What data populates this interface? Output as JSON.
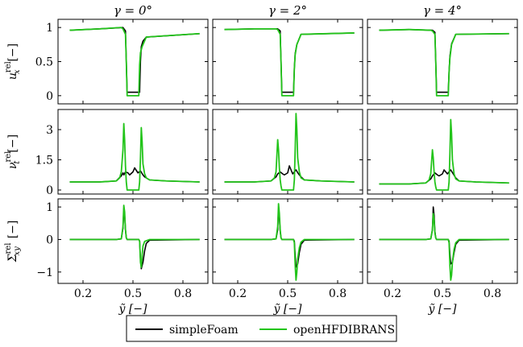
{
  "colors": {
    "simpleFoam": "#000000",
    "openHFDIBRANS": "#22c41a"
  },
  "chart_data": {
    "type": "line",
    "column_titles": [
      "γ = 0°",
      "γ = 2°",
      "γ = 4°"
    ],
    "xlabel": "ỹ [−]",
    "x_ticks": [
      0.2,
      0.5,
      0.8
    ],
    "xlim": [
      0.05,
      0.95
    ],
    "legend": {
      "placement": "bottom-center",
      "entries": [
        "simpleFoam",
        "openHFDIBRANS"
      ]
    },
    "rows": [
      {
        "ylabel": "u_x^rel [−]",
        "ylim": [
          -0.12,
          1.12
        ],
        "y_ticks": [
          0,
          0.5,
          1
        ],
        "panels": [
          {
            "title": "γ = 0°",
            "series": [
              {
                "name": "simpleFoam",
                "x": [
                  0.12,
                  0.3,
                  0.44,
                  0.455,
                  0.46,
                  0.465,
                  0.54,
                  0.545,
                  0.55,
                  0.56,
                  0.58,
                  0.9
                ],
                "y": [
                  0.96,
                  0.98,
                  1.0,
                  0.95,
                  0.5,
                  0.05,
                  0.05,
                  0.5,
                  0.72,
                  0.8,
                  0.86,
                  0.91
                ]
              },
              {
                "name": "openHFDIBRANS",
                "x": [
                  0.12,
                  0.3,
                  0.43,
                  0.44,
                  0.455,
                  0.46,
                  0.465,
                  0.535,
                  0.54,
                  0.545,
                  0.555,
                  0.58,
                  0.9
                ],
                "y": [
                  0.96,
                  0.98,
                  1.0,
                  0.98,
                  0.9,
                  0.5,
                  0.0,
                  0.0,
                  0.45,
                  0.63,
                  0.72,
                  0.86,
                  0.91
                ]
              }
            ]
          },
          {
            "title": "γ = 2°",
            "series": [
              {
                "name": "simpleFoam",
                "x": [
                  0.12,
                  0.3,
                  0.44,
                  0.455,
                  0.46,
                  0.465,
                  0.535,
                  0.54,
                  0.545,
                  0.555,
                  0.58,
                  0.9
                ],
                "y": [
                  0.97,
                  0.98,
                  0.98,
                  0.95,
                  0.5,
                  0.05,
                  0.05,
                  0.4,
                  0.62,
                  0.75,
                  0.9,
                  0.92
                ]
              },
              {
                "name": "openHFDIBRANS",
                "x": [
                  0.12,
                  0.3,
                  0.43,
                  0.44,
                  0.455,
                  0.46,
                  0.465,
                  0.535,
                  0.54,
                  0.545,
                  0.555,
                  0.58,
                  0.9
                ],
                "y": [
                  0.97,
                  0.98,
                  0.98,
                  0.97,
                  0.9,
                  0.5,
                  0.0,
                  0.0,
                  0.4,
                  0.6,
                  0.75,
                  0.9,
                  0.92
                ]
              }
            ]
          },
          {
            "title": "γ = 4°",
            "series": [
              {
                "name": "simpleFoam",
                "x": [
                  0.12,
                  0.3,
                  0.44,
                  0.455,
                  0.46,
                  0.465,
                  0.535,
                  0.54,
                  0.545,
                  0.555,
                  0.58,
                  0.9
                ],
                "y": [
                  0.96,
                  0.97,
                  0.96,
                  0.93,
                  0.5,
                  0.05,
                  0.05,
                  0.35,
                  0.58,
                  0.76,
                  0.9,
                  0.91
                ]
              },
              {
                "name": "openHFDIBRANS",
                "x": [
                  0.12,
                  0.3,
                  0.43,
                  0.44,
                  0.455,
                  0.46,
                  0.465,
                  0.535,
                  0.54,
                  0.545,
                  0.555,
                  0.58,
                  0.9
                ],
                "y": [
                  0.96,
                  0.97,
                  0.96,
                  0.95,
                  0.9,
                  0.5,
                  0.0,
                  0.0,
                  0.35,
                  0.55,
                  0.75,
                  0.9,
                  0.91
                ]
              }
            ]
          }
        ]
      },
      {
        "ylabel": "ν_t^rel [−]",
        "ylim": [
          -0.2,
          4.0
        ],
        "y_ticks": [
          0,
          1.5,
          3
        ],
        "y_tick_labels": [
          "0",
          "1.5",
          "3"
        ],
        "panels": [
          {
            "title": "γ = 0°",
            "series": [
              {
                "name": "simpleFoam",
                "x": [
                  0.12,
                  0.3,
                  0.4,
                  0.43,
                  0.44,
                  0.445,
                  0.455,
                  0.47,
                  0.48,
                  0.5,
                  0.51,
                  0.53,
                  0.545,
                  0.56,
                  0.57,
                  0.6,
                  0.7,
                  0.9
                ],
                "y": [
                  0.4,
                  0.4,
                  0.45,
                  0.7,
                  0.85,
                  0.75,
                  0.9,
                  0.85,
                  0.75,
                  0.9,
                  1.1,
                  0.85,
                  0.95,
                  0.75,
                  0.65,
                  0.5,
                  0.45,
                  0.4
                ]
              },
              {
                "name": "openHFDIBRANS",
                "x": [
                  0.12,
                  0.3,
                  0.4,
                  0.42,
                  0.43,
                  0.44,
                  0.445,
                  0.45,
                  0.455,
                  0.46,
                  0.465,
                  0.535,
                  0.54,
                  0.545,
                  0.55,
                  0.555,
                  0.56,
                  0.57,
                  0.58,
                  0.6,
                  0.7,
                  0.9
                ],
                "y": [
                  0.4,
                  0.4,
                  0.45,
                  0.6,
                  0.9,
                  2.0,
                  3.3,
                  2.5,
                  1.2,
                  0.4,
                  0.0,
                  0.0,
                  0.4,
                  1.6,
                  3.1,
                  2.4,
                  1.3,
                  0.8,
                  0.6,
                  0.5,
                  0.45,
                  0.4
                ]
              }
            ]
          },
          {
            "title": "γ = 2°",
            "series": [
              {
                "name": "simpleFoam",
                "x": [
                  0.12,
                  0.3,
                  0.4,
                  0.43,
                  0.44,
                  0.455,
                  0.47,
                  0.48,
                  0.5,
                  0.51,
                  0.53,
                  0.55,
                  0.565,
                  0.58,
                  0.6,
                  0.7,
                  0.9
                ],
                "y": [
                  0.4,
                  0.4,
                  0.45,
                  0.65,
                  0.8,
                  0.9,
                  0.8,
                  0.75,
                  0.85,
                  1.2,
                  0.8,
                  1.0,
                  0.8,
                  0.65,
                  0.5,
                  0.45,
                  0.4
                ]
              },
              {
                "name": "openHFDIBRANS",
                "x": [
                  0.12,
                  0.3,
                  0.4,
                  0.42,
                  0.43,
                  0.44,
                  0.445,
                  0.45,
                  0.455,
                  0.46,
                  0.465,
                  0.535,
                  0.54,
                  0.545,
                  0.55,
                  0.555,
                  0.56,
                  0.57,
                  0.58,
                  0.6,
                  0.7,
                  0.9
                ],
                "y": [
                  0.4,
                  0.4,
                  0.45,
                  0.6,
                  0.9,
                  2.5,
                  2.0,
                  1.1,
                  0.5,
                  0.2,
                  0.0,
                  0.0,
                  0.5,
                  2.0,
                  3.8,
                  3.0,
                  1.6,
                  0.9,
                  0.6,
                  0.5,
                  0.45,
                  0.4
                ]
              }
            ]
          },
          {
            "title": "γ = 4°",
            "series": [
              {
                "name": "simpleFoam",
                "x": [
                  0.12,
                  0.3,
                  0.4,
                  0.43,
                  0.44,
                  0.455,
                  0.47,
                  0.48,
                  0.5,
                  0.51,
                  0.53,
                  0.55,
                  0.565,
                  0.58,
                  0.6,
                  0.7,
                  0.9
                ],
                "y": [
                  0.3,
                  0.3,
                  0.35,
                  0.55,
                  0.7,
                  0.85,
                  0.75,
                  0.7,
                  0.8,
                  1.0,
                  0.8,
                  1.0,
                  0.8,
                  0.6,
                  0.45,
                  0.4,
                  0.35
                ]
              },
              {
                "name": "openHFDIBRANS",
                "x": [
                  0.12,
                  0.3,
                  0.4,
                  0.42,
                  0.43,
                  0.44,
                  0.445,
                  0.45,
                  0.455,
                  0.46,
                  0.465,
                  0.535,
                  0.54,
                  0.545,
                  0.55,
                  0.555,
                  0.56,
                  0.57,
                  0.58,
                  0.6,
                  0.7,
                  0.9
                ],
                "y": [
                  0.3,
                  0.3,
                  0.35,
                  0.5,
                  0.8,
                  2.0,
                  1.6,
                  0.9,
                  0.4,
                  0.15,
                  0.0,
                  0.0,
                  0.4,
                  1.8,
                  3.5,
                  2.8,
                  1.5,
                  0.8,
                  0.55,
                  0.45,
                  0.4,
                  0.35
                ]
              }
            ]
          }
        ]
      },
      {
        "ylabel": "Σ_xy^rel [−]",
        "ylim": [
          -1.35,
          1.25
        ],
        "y_ticks": [
          -1,
          0,
          1
        ],
        "panels": [
          {
            "title": "γ = 0°",
            "series": [
              {
                "name": "simpleFoam",
                "x": [
                  0.12,
                  0.4,
                  0.43,
                  0.44,
                  0.445,
                  0.45,
                  0.455,
                  0.46,
                  0.465,
                  0.535,
                  0.54,
                  0.545,
                  0.55,
                  0.56,
                  0.57,
                  0.58,
                  0.6,
                  0.9
                ],
                "y": [
                  0.0,
                  0.0,
                  0.02,
                  0.35,
                  0.95,
                  0.75,
                  0.3,
                  0.05,
                  0.0,
                  0.0,
                  -0.05,
                  -0.6,
                  -0.9,
                  -0.7,
                  -0.35,
                  -0.12,
                  -0.02,
                  0.0
                ]
              },
              {
                "name": "openHFDIBRANS",
                "x": [
                  0.12,
                  0.4,
                  0.43,
                  0.44,
                  0.445,
                  0.45,
                  0.455,
                  0.46,
                  0.465,
                  0.535,
                  0.54,
                  0.545,
                  0.55,
                  0.555,
                  0.56,
                  0.57,
                  0.6,
                  0.9
                ],
                "y": [
                  0.0,
                  0.0,
                  0.02,
                  0.4,
                  1.05,
                  0.85,
                  0.3,
                  0.05,
                  0.0,
                  0.0,
                  -0.05,
                  -0.7,
                  -0.85,
                  -0.5,
                  -0.2,
                  -0.06,
                  0.0,
                  0.0
                ]
              }
            ]
          },
          {
            "title": "γ = 2°",
            "series": [
              {
                "name": "simpleFoam",
                "x": [
                  0.12,
                  0.4,
                  0.43,
                  0.44,
                  0.445,
                  0.45,
                  0.455,
                  0.46,
                  0.465,
                  0.535,
                  0.54,
                  0.545,
                  0.55,
                  0.56,
                  0.57,
                  0.58,
                  0.6,
                  0.9
                ],
                "y": [
                  0.0,
                  0.0,
                  0.02,
                  0.3,
                  0.95,
                  0.7,
                  0.25,
                  0.05,
                  0.0,
                  0.0,
                  -0.05,
                  -0.5,
                  -0.85,
                  -0.75,
                  -0.4,
                  -0.15,
                  -0.02,
                  0.0
                ]
              },
              {
                "name": "openHFDIBRANS",
                "x": [
                  0.12,
                  0.4,
                  0.43,
                  0.44,
                  0.445,
                  0.45,
                  0.455,
                  0.46,
                  0.465,
                  0.535,
                  0.54,
                  0.545,
                  0.55,
                  0.555,
                  0.56,
                  0.57,
                  0.58,
                  0.6,
                  0.9
                ],
                "y": [
                  0.0,
                  0.0,
                  0.02,
                  0.4,
                  1.1,
                  0.8,
                  0.3,
                  0.05,
                  0.0,
                  0.0,
                  -0.1,
                  -0.8,
                  -1.25,
                  -1.0,
                  -0.6,
                  -0.25,
                  -0.08,
                  0.0,
                  0.0
                ]
              }
            ]
          },
          {
            "title": "γ = 4°",
            "series": [
              {
                "name": "simpleFoam",
                "x": [
                  0.12,
                  0.4,
                  0.43,
                  0.44,
                  0.445,
                  0.45,
                  0.455,
                  0.46,
                  0.465,
                  0.535,
                  0.54,
                  0.545,
                  0.55,
                  0.56,
                  0.57,
                  0.58,
                  0.6,
                  0.9
                ],
                "y": [
                  0.0,
                  0.0,
                  0.02,
                  0.3,
                  1.0,
                  0.75,
                  0.25,
                  0.05,
                  0.0,
                  0.0,
                  -0.05,
                  -0.45,
                  -0.75,
                  -0.7,
                  -0.4,
                  -0.15,
                  -0.02,
                  0.0
                ]
              },
              {
                "name": "openHFDIBRANS",
                "x": [
                  0.12,
                  0.4,
                  0.43,
                  0.44,
                  0.445,
                  0.45,
                  0.455,
                  0.46,
                  0.465,
                  0.535,
                  0.54,
                  0.545,
                  0.55,
                  0.555,
                  0.56,
                  0.57,
                  0.58,
                  0.6,
                  0.9
                ],
                "y": [
                  0.0,
                  0.0,
                  0.02,
                  0.3,
                  0.8,
                  0.6,
                  0.2,
                  0.05,
                  0.0,
                  0.0,
                  -0.1,
                  -0.8,
                  -1.25,
                  -1.1,
                  -0.7,
                  -0.3,
                  -0.1,
                  0.0,
                  0.0
                ]
              }
            ]
          }
        ]
      }
    ]
  }
}
